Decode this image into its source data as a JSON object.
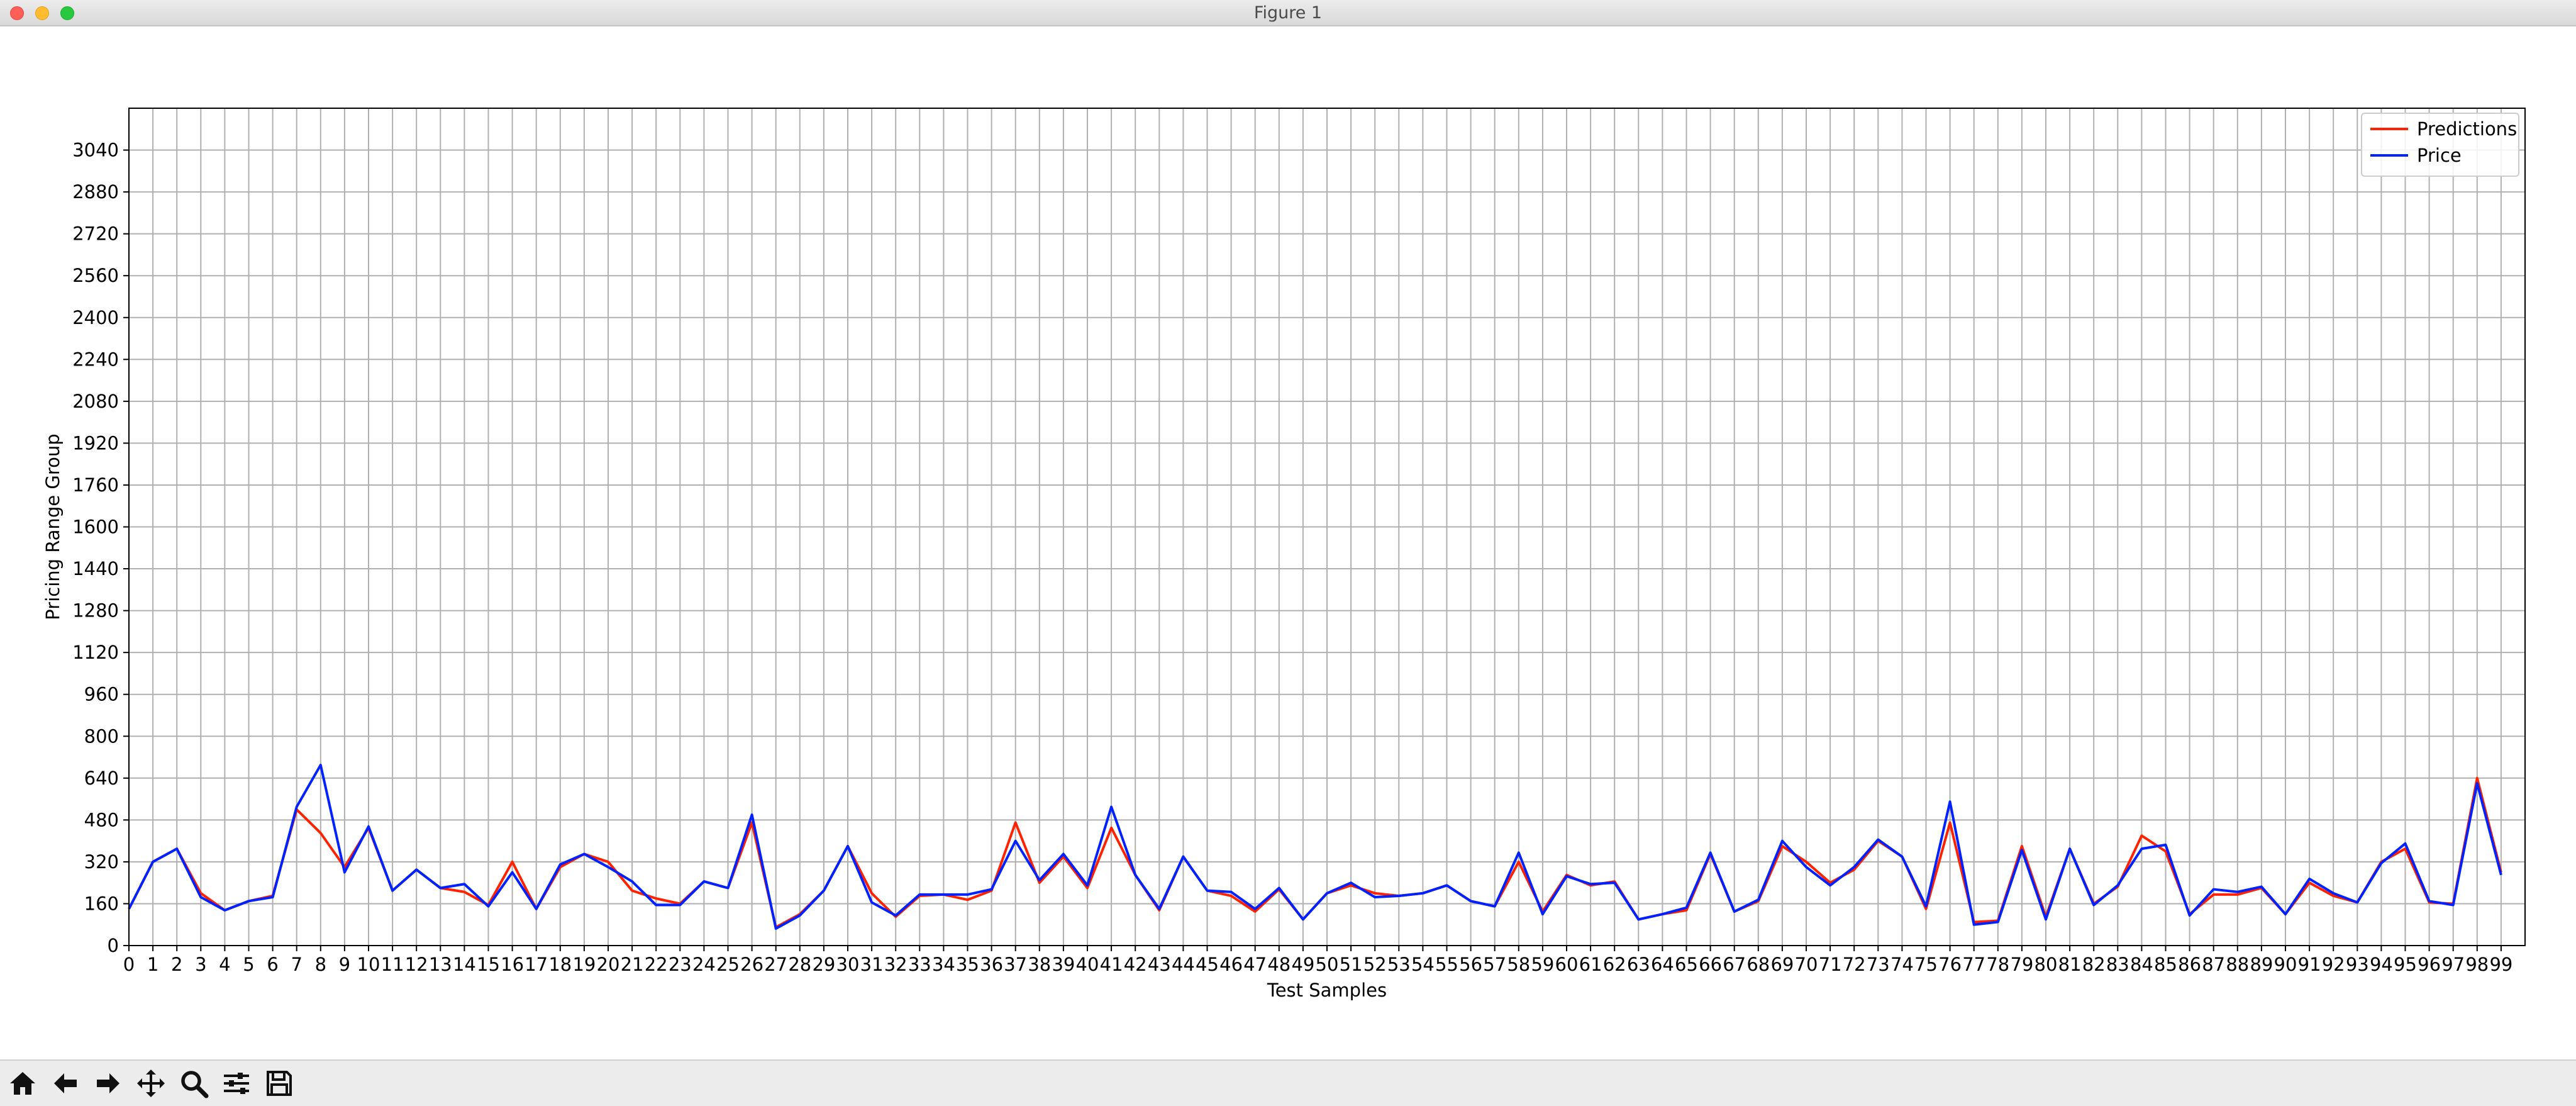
{
  "window": {
    "title": "Figure 1"
  },
  "toolbar": {
    "tools": [
      {
        "name": "home-icon"
      },
      {
        "name": "back-arrow-icon"
      },
      {
        "name": "forward-arrow-icon"
      },
      {
        "name": "pan-icon"
      },
      {
        "name": "zoom-icon"
      },
      {
        "name": "configure-subplots-icon"
      },
      {
        "name": "save-icon"
      }
    ]
  },
  "chart_data": {
    "type": "line",
    "title": "",
    "xlabel": "Test Samples",
    "ylabel": "Pricing Range Group",
    "xlim": [
      0,
      100
    ],
    "ylim": [
      0,
      3200
    ],
    "x_ticks": [
      0,
      1,
      2,
      3,
      4,
      5,
      6,
      7,
      8,
      9,
      10,
      11,
      12,
      13,
      14,
      15,
      16,
      17,
      18,
      19,
      20,
      21,
      22,
      23,
      24,
      25,
      26,
      27,
      28,
      29,
      30,
      31,
      32,
      33,
      34,
      35,
      36,
      37,
      38,
      39,
      40,
      41,
      42,
      43,
      44,
      45,
      46,
      47,
      48,
      49,
      50,
      51,
      52,
      53,
      54,
      55,
      56,
      57,
      58,
      59,
      60,
      61,
      62,
      63,
      64,
      65,
      66,
      67,
      68,
      69,
      70,
      71,
      72,
      73,
      74,
      75,
      76,
      77,
      78,
      79,
      80,
      81,
      82,
      83,
      84,
      85,
      86,
      87,
      88,
      89,
      90,
      91,
      92,
      93,
      94,
      95,
      96,
      97,
      98,
      99
    ],
    "y_ticks": [
      0,
      160,
      320,
      480,
      640,
      800,
      960,
      1120,
      1280,
      1440,
      1600,
      1760,
      1920,
      2080,
      2240,
      2400,
      2560,
      2720,
      2880,
      3040
    ],
    "grid": true,
    "legend_position": "top-right",
    "series": [
      {
        "name": "Predictions",
        "color": "#ff2200",
        "values": [
          140,
          320,
          370,
          200,
          135,
          170,
          190,
          520,
          430,
          300,
          450,
          210,
          290,
          220,
          205,
          155,
          320,
          140,
          300,
          350,
          320,
          210,
          180,
          160,
          245,
          220,
          470,
          70,
          120,
          210,
          380,
          200,
          110,
          190,
          195,
          175,
          210,
          470,
          240,
          340,
          220,
          450,
          270,
          135,
          340,
          210,
          190,
          130,
          215,
          100,
          200,
          230,
          200,
          190,
          200,
          230,
          170,
          150,
          320,
          130,
          270,
          230,
          245,
          100,
          120,
          135,
          350,
          130,
          170,
          380,
          320,
          240,
          290,
          400,
          340,
          140,
          470,
          90,
          95,
          380,
          110,
          370,
          160,
          225,
          420,
          360,
          120,
          195,
          195,
          220,
          120,
          240,
          190,
          165,
          320,
          370,
          165,
          160,
          640,
          280
        ]
      },
      {
        "name": "Price",
        "color": "#0022ff",
        "values": [
          140,
          320,
          370,
          185,
          135,
          170,
          185,
          530,
          690,
          280,
          455,
          210,
          290,
          220,
          235,
          150,
          280,
          140,
          310,
          350,
          300,
          245,
          155,
          155,
          245,
          220,
          500,
          65,
          115,
          210,
          380,
          165,
          115,
          195,
          195,
          195,
          215,
          400,
          250,
          350,
          230,
          530,
          270,
          140,
          340,
          210,
          205,
          140,
          220,
          100,
          200,
          240,
          185,
          190,
          200,
          230,
          170,
          150,
          355,
          120,
          265,
          235,
          240,
          100,
          120,
          145,
          355,
          130,
          175,
          400,
          300,
          230,
          300,
          405,
          340,
          150,
          550,
          80,
          90,
          365,
          100,
          370,
          155,
          230,
          370,
          385,
          115,
          215,
          205,
          225,
          120,
          255,
          200,
          165,
          315,
          390,
          170,
          155,
          620,
          270
        ]
      }
    ]
  }
}
